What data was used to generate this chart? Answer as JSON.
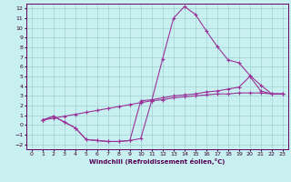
{
  "title": "",
  "xlabel": "Windchill (Refroidissement éolien,°C)",
  "ylabel": "",
  "bg_color": "#c8f0f0",
  "line_color": "#993399",
  "xlim": [
    -0.5,
    23.5
  ],
  "ylim": [
    -2.5,
    12.5
  ],
  "xticks": [
    0,
    1,
    2,
    3,
    4,
    5,
    6,
    7,
    8,
    9,
    10,
    11,
    12,
    13,
    14,
    15,
    16,
    17,
    18,
    19,
    20,
    21,
    22,
    23
  ],
  "yticks": [
    -2,
    -1,
    0,
    1,
    2,
    3,
    4,
    5,
    6,
    7,
    8,
    9,
    10,
    11,
    12
  ],
  "line1_x": [
    1,
    2,
    3,
    4,
    5,
    6,
    7,
    8,
    9,
    10,
    11,
    12,
    13,
    14,
    15,
    16,
    17,
    18,
    19,
    20,
    21,
    22,
    23
  ],
  "line1_y": [
    0.5,
    0.9,
    0.3,
    -0.3,
    -1.5,
    -1.6,
    -1.7,
    -1.7,
    -1.6,
    -1.4,
    2.5,
    6.8,
    11.0,
    12.2,
    11.4,
    9.7,
    8.1,
    6.7,
    6.4,
    5.1,
    4.1,
    3.2,
    3.2
  ],
  "line2_x": [
    1,
    2,
    3,
    4,
    5,
    6,
    7,
    8,
    9,
    10,
    11,
    12,
    13,
    14,
    15,
    16,
    17,
    18,
    19,
    20,
    21,
    22,
    23
  ],
  "line2_y": [
    0.5,
    0.9,
    0.3,
    -0.3,
    -1.5,
    -1.6,
    -1.7,
    -1.7,
    -1.6,
    2.5,
    2.6,
    2.8,
    3.0,
    3.1,
    3.2,
    3.4,
    3.5,
    3.7,
    3.9,
    5.0,
    3.5,
    3.2,
    3.2
  ],
  "line3_x": [
    1,
    2,
    3,
    4,
    5,
    6,
    7,
    8,
    9,
    10,
    11,
    12,
    13,
    14,
    15,
    16,
    17,
    18,
    19,
    20,
    21,
    22,
    23
  ],
  "line3_y": [
    0.5,
    0.7,
    0.9,
    1.1,
    1.3,
    1.5,
    1.7,
    1.9,
    2.1,
    2.3,
    2.5,
    2.6,
    2.8,
    2.9,
    3.0,
    3.1,
    3.2,
    3.2,
    3.3,
    3.3,
    3.3,
    3.2,
    3.2
  ],
  "grid_color": "#a0d0d0",
  "marker": "+"
}
